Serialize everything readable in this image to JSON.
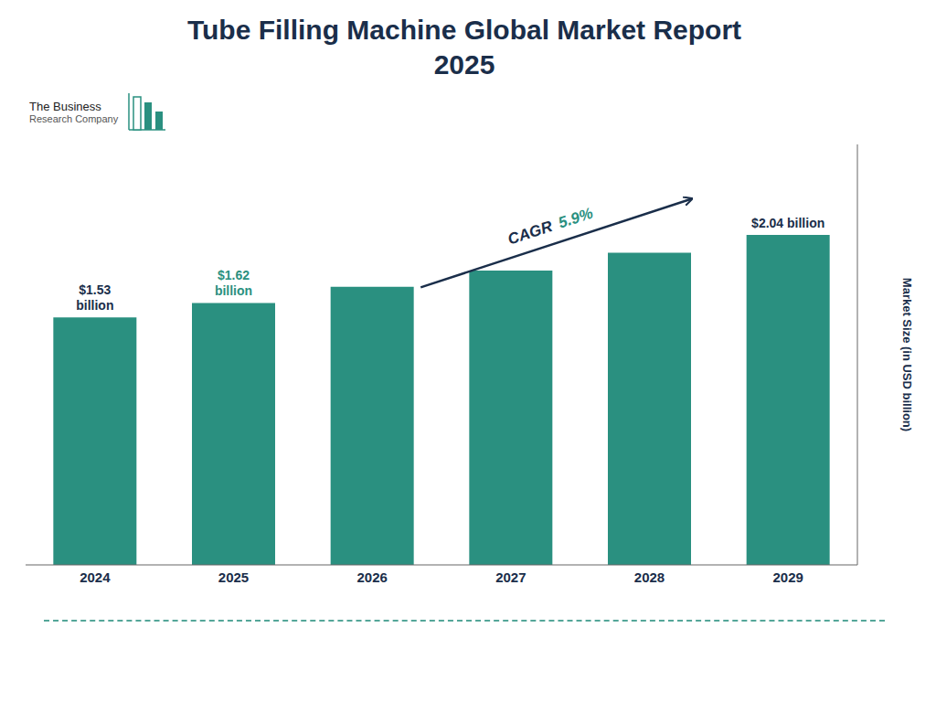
{
  "chart_data": {
    "type": "bar",
    "title": "Tube Filling Machine Global Market Report",
    "subtitle": "2025",
    "categories": [
      "2024",
      "2025",
      "2026",
      "2027",
      "2028",
      "2029"
    ],
    "values": [
      1.53,
      1.62,
      1.72,
      1.82,
      1.93,
      2.04
    ],
    "color": "#2a9080",
    "ylabel": "Market Size (in USD billion)",
    "ylim": [
      0,
      2.6
    ],
    "tick_labels": "x",
    "grid": false,
    "annotations": [
      {
        "text": "$1.53\nbillion",
        "x": "2024",
        "y": 1.53,
        "color": "#1a2e4a"
      },
      {
        "text": "$1.62\nbillion",
        "x": "2025",
        "y": 1.62,
        "color": "#2a9080"
      },
      {
        "text": "$2.04 billion",
        "x": "2029",
        "y": 2.04,
        "color": "#1a2e4a"
      }
    ],
    "cagr": [
      {
        "text": "CAGR",
        "color": "#1a2e4a"
      },
      {
        "text": "5.9%",
        "color": "#2a9080"
      }
    ],
    "logo": [
      "The Business",
      "Research Company"
    ]
  }
}
